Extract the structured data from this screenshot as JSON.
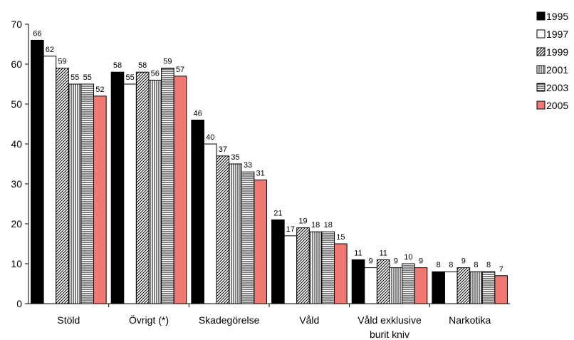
{
  "chart_data": {
    "type": "bar",
    "title": "",
    "xlabel": "",
    "ylabel": "",
    "ylim": [
      0,
      70
    ],
    "yticks": [
      0,
      10,
      20,
      30,
      40,
      50,
      60,
      70
    ],
    "categories": [
      [
        "Stöld"
      ],
      [
        "Övrigt (*)"
      ],
      [
        "Skadegörelse"
      ],
      [
        "Våld"
      ],
      [
        "Våld exklusive",
        "burit kniv"
      ],
      [
        "Narkotika"
      ]
    ],
    "series": [
      {
        "name": "1995",
        "pattern": "solid-black",
        "color": "#000000",
        "values": [
          66,
          58,
          46,
          21,
          11,
          8
        ]
      },
      {
        "name": "1997",
        "pattern": "white",
        "color": "#ffffff",
        "values": [
          62,
          55,
          40,
          17,
          9,
          8
        ]
      },
      {
        "name": "1999",
        "pattern": "diagonal-hatch",
        "color": "#ffffff",
        "values": [
          59,
          58,
          37,
          19,
          11,
          9
        ]
      },
      {
        "name": "2001",
        "pattern": "vertical-lines",
        "color": "#ffffff",
        "values": [
          55,
          56,
          35,
          18,
          9,
          8
        ]
      },
      {
        "name": "2003",
        "pattern": "horizontal-lines",
        "color": "#ffffff",
        "values": [
          55,
          59,
          33,
          18,
          10,
          8
        ]
      },
      {
        "name": "2005",
        "pattern": "solid-salmon",
        "color": "#f07873",
        "values": [
          52,
          57,
          31,
          15,
          9,
          7
        ]
      }
    ],
    "grid": false,
    "legend": "top-right",
    "data_labels": true
  }
}
